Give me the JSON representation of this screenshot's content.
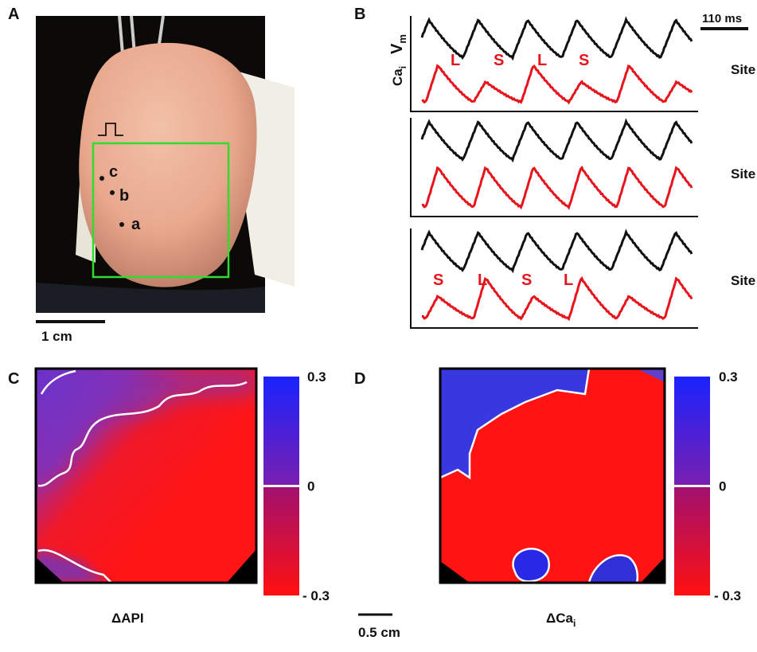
{
  "panel_a": {
    "label": "A",
    "sites": [
      {
        "label": "c"
      },
      {
        "label": "b"
      },
      {
        "label": "a"
      }
    ],
    "scale_bar": "1 cm"
  },
  "panel_b": {
    "label": "B",
    "scale_bar": "110 ms",
    "vm_label": {
      "text": "V",
      "subscript": "m"
    },
    "ca_label": {
      "text": "Ca",
      "subscript": "i"
    },
    "sites": [
      {
        "name": "Site a",
        "annotations": [
          "L",
          "S",
          "L",
          "S"
        ]
      },
      {
        "name": "Site b"
      },
      {
        "name": "Site c",
        "annotations": [
          "S",
          "L",
          "S",
          "L"
        ]
      }
    ]
  },
  "panel_c": {
    "label": "C",
    "caption": {
      "text": "ΔAPI"
    },
    "colorbar": {
      "lim": [
        -0.3,
        0.3
      ],
      "ticks": [
        0.3,
        0,
        {
          "value": -0.3,
          "label": "- 0.3"
        }
      ]
    }
  },
  "panel_d": {
    "label": "D",
    "caption": {
      "text": "ΔCa",
      "subscript": "i"
    },
    "colorbar": {
      "lim": [
        -0.3,
        0.3
      ],
      "ticks": [
        0.3,
        0,
        {
          "value": -0.3,
          "label": "- 0.3"
        }
      ]
    }
  },
  "map_scale_bar": "0.5 cm"
}
